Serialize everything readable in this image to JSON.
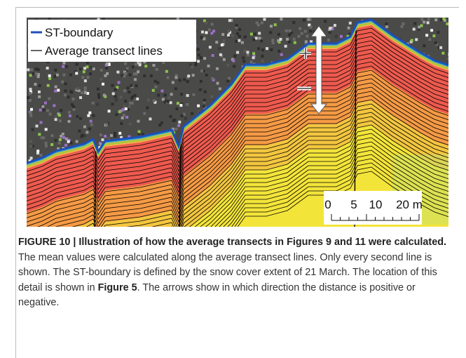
{
  "figure": {
    "legend": [
      "ST-boundary",
      "Average transect lines"
    ],
    "scale_bar": {
      "labels": [
        "0",
        "5",
        "10",
        "20 m"
      ]
    },
    "caption": {
      "label": "FIGURE 10 | Illustration of how the average transects in Figures 9 and 11 were calculated.",
      "text_before": " The mean values were calculated along the average transect lines. Only every second line is shown. The ST-boundary is defined by the snow cover extent of 21 March. The location of this detail is shown in ",
      "figure_ref": "Figure 5",
      "text_after": ". The arrows show in which direction the distance is positive or negative."
    }
  }
}
